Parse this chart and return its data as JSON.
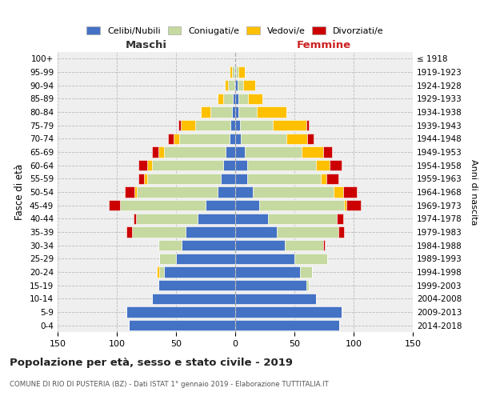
{
  "age_groups": [
    "0-4",
    "5-9",
    "10-14",
    "15-19",
    "20-24",
    "25-29",
    "30-34",
    "35-39",
    "40-44",
    "45-49",
    "50-54",
    "55-59",
    "60-64",
    "65-69",
    "70-74",
    "75-79",
    "80-84",
    "85-89",
    "90-94",
    "95-99",
    "100+"
  ],
  "birth_years": [
    "2014-2018",
    "2009-2013",
    "2004-2008",
    "1999-2003",
    "1994-1998",
    "1989-1993",
    "1984-1988",
    "1979-1983",
    "1974-1978",
    "1969-1973",
    "1964-1968",
    "1959-1963",
    "1954-1958",
    "1949-1953",
    "1944-1948",
    "1939-1943",
    "1934-1938",
    "1929-1933",
    "1924-1928",
    "1919-1923",
    "≤ 1918"
  ],
  "males": {
    "single": [
      90,
      92,
      70,
      65,
      60,
      50,
      45,
      42,
      32,
      25,
      15,
      12,
      10,
      8,
      5,
      4,
      3,
      2,
      1,
      1,
      0
    ],
    "married": [
      0,
      0,
      0,
      0,
      4,
      14,
      20,
      45,
      52,
      72,
      68,
      62,
      60,
      52,
      42,
      30,
      18,
      8,
      5,
      2,
      0
    ],
    "widowed": [
      0,
      0,
      0,
      0,
      2,
      0,
      0,
      0,
      0,
      0,
      2,
      3,
      4,
      5,
      5,
      12,
      8,
      5,
      3,
      2,
      0
    ],
    "divorced": [
      0,
      0,
      0,
      0,
      0,
      0,
      0,
      5,
      2,
      10,
      8,
      5,
      8,
      5,
      5,
      2,
      0,
      0,
      0,
      0,
      0
    ]
  },
  "females": {
    "single": [
      88,
      90,
      68,
      60,
      55,
      50,
      42,
      35,
      28,
      20,
      15,
      10,
      10,
      8,
      5,
      4,
      3,
      3,
      2,
      1,
      0
    ],
    "married": [
      0,
      0,
      0,
      2,
      10,
      28,
      32,
      52,
      58,
      72,
      68,
      62,
      58,
      48,
      38,
      28,
      15,
      8,
      5,
      2,
      0
    ],
    "widowed": [
      0,
      0,
      0,
      0,
      0,
      0,
      0,
      0,
      0,
      2,
      8,
      5,
      12,
      18,
      18,
      28,
      25,
      12,
      10,
      5,
      0
    ],
    "divorced": [
      0,
      0,
      0,
      0,
      0,
      0,
      2,
      5,
      5,
      12,
      12,
      10,
      10,
      8,
      5,
      2,
      0,
      0,
      0,
      0,
      0
    ]
  },
  "colors": {
    "single": "#4472c4",
    "married": "#c5d9a0",
    "widowed": "#ffc000",
    "divorced": "#cc0000"
  },
  "xlim": 150,
  "title": "Popolazione per età, sesso e stato civile - 2019",
  "subtitle": "COMUNE DI RIO DI PUSTERIA (BZ) - Dati ISTAT 1° gennaio 2019 - Elaborazione TUTTITALIA.IT",
  "ylabel_left": "Fasce di età",
  "ylabel_right": "Anni di nascita",
  "xlabel_left": "Maschi",
  "xlabel_right": "Femmine",
  "legend_labels": [
    "Celibi/Nubili",
    "Coniugati/e",
    "Vedovi/e",
    "Divorziati/e"
  ],
  "bg_color": "#ffffff",
  "plot_bg": "#efefef"
}
